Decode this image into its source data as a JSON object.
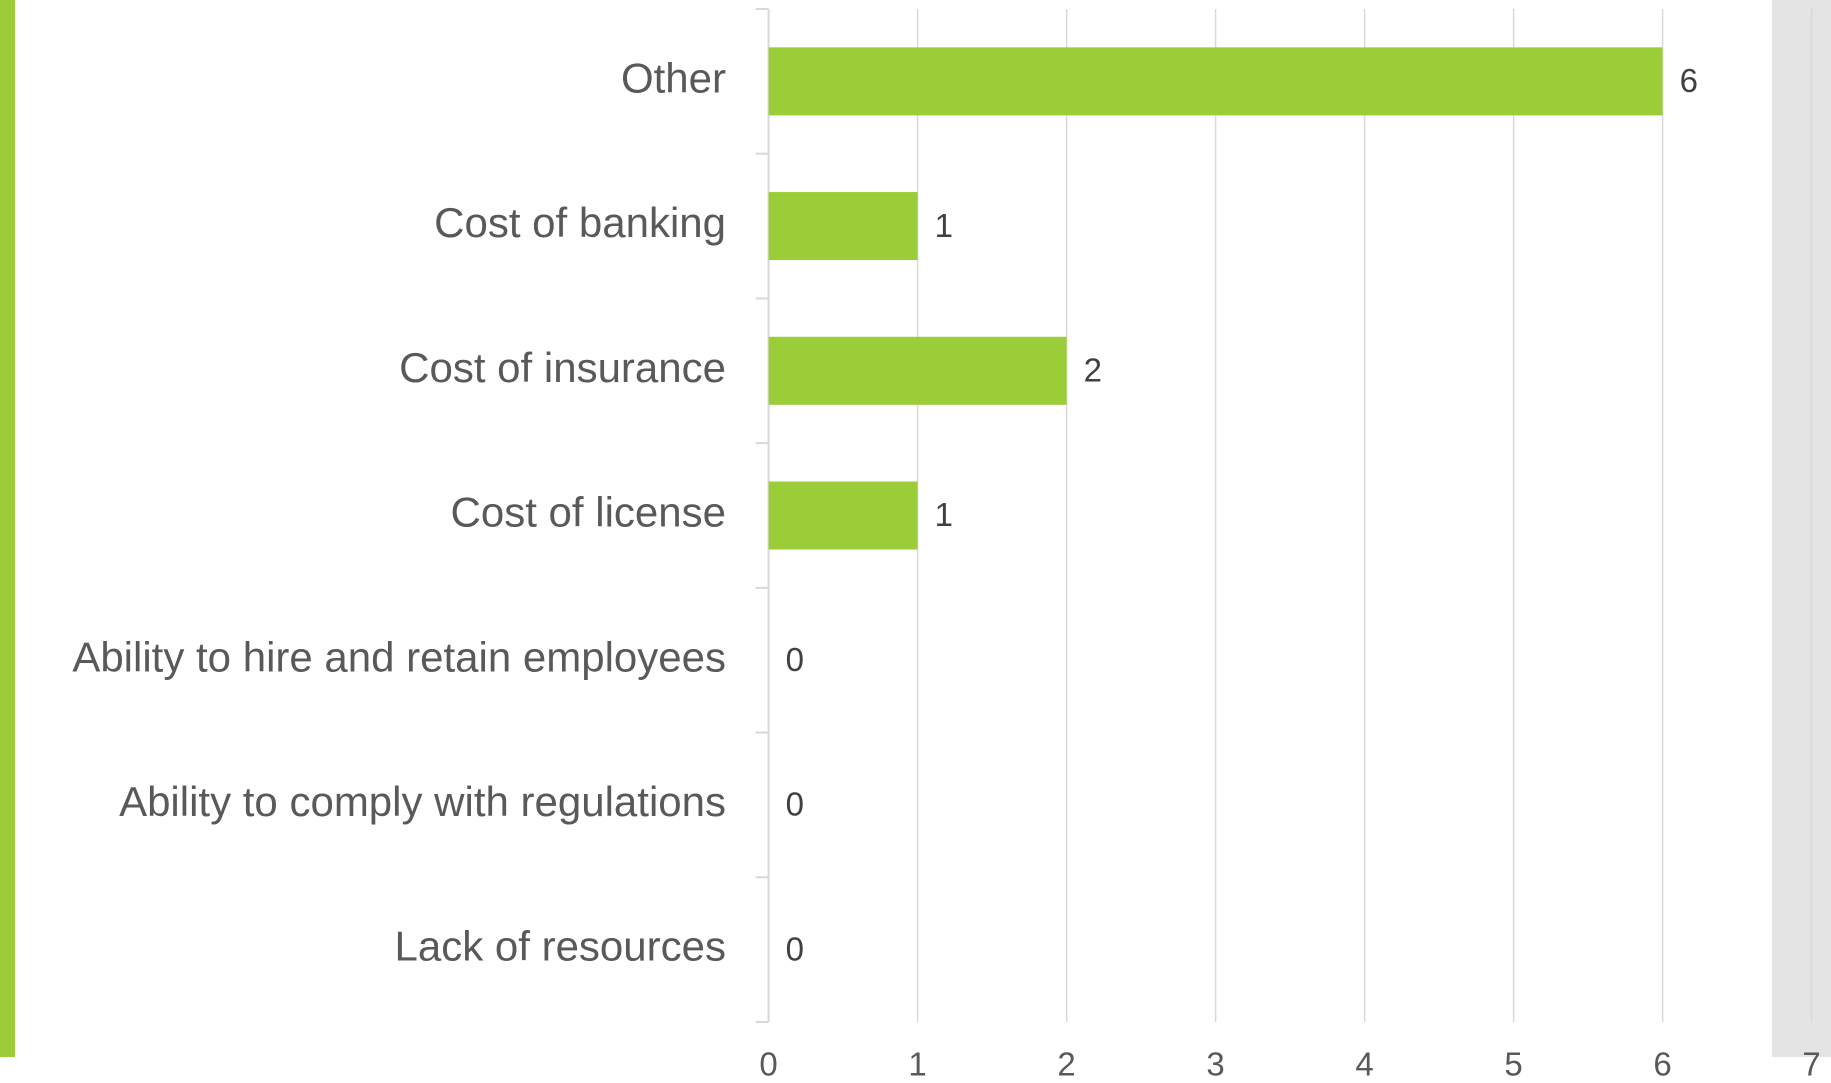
{
  "chart_data": {
    "type": "bar",
    "orientation": "horizontal",
    "categories": [
      "Other",
      "Cost of banking",
      "Cost of insurance",
      "Cost of license",
      "Ability to hire and retain employees",
      "Ability to comply with regulations",
      "Lack of resources"
    ],
    "values": [
      6,
      1,
      2,
      1,
      0,
      0,
      0
    ],
    "color": "#9acd38",
    "xlim": [
      0,
      7
    ],
    "xticks": [
      0,
      1,
      2,
      3,
      4,
      5,
      6,
      7
    ],
    "grid": true
  }
}
